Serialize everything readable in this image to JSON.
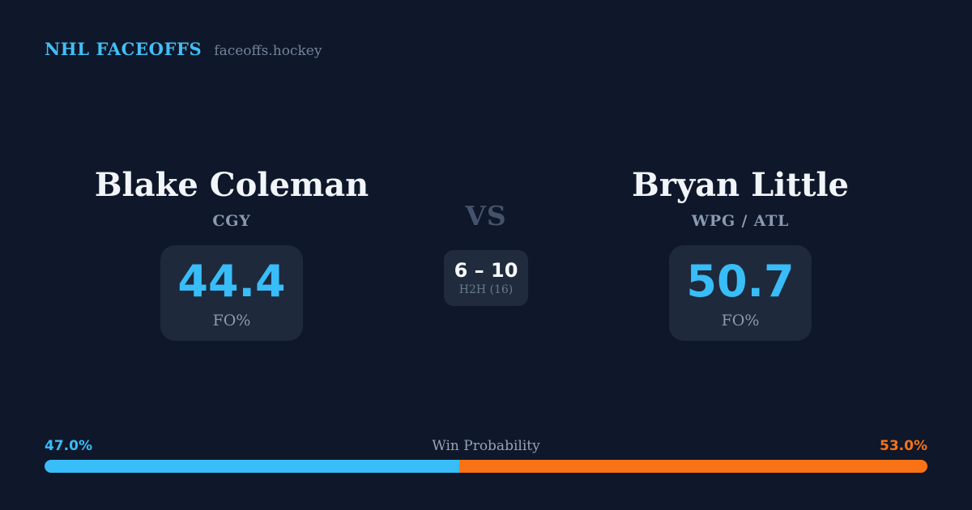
{
  "brand": {
    "title": "NHL FACEOFFS",
    "domain": "faceoffs.hockey"
  },
  "matchup": {
    "vs_label": "VS",
    "left": {
      "name": "Blake Coleman",
      "team": "CGY",
      "fo_pct": "44.4",
      "stat_label": "FO%"
    },
    "right": {
      "name": "Bryan Little",
      "team": "WPG / ATL",
      "fo_pct": "50.7",
      "stat_label": "FO%"
    },
    "h2h": {
      "score": "6 – 10",
      "label": "H2H (16)"
    }
  },
  "win_probability": {
    "label": "Win Probability",
    "left_pct_label": "47.0%",
    "right_pct_label": "53.0%",
    "left_value": 47.0,
    "right_value": 53.0
  },
  "colors": {
    "background": "#0f172a",
    "card": "#1e293b",
    "accent_blue": "#38bdf8",
    "accent_orange": "#f97316",
    "text_primary": "#f1f5f9",
    "text_muted": "#8a9ab1",
    "vs_gray": "#44536b"
  }
}
